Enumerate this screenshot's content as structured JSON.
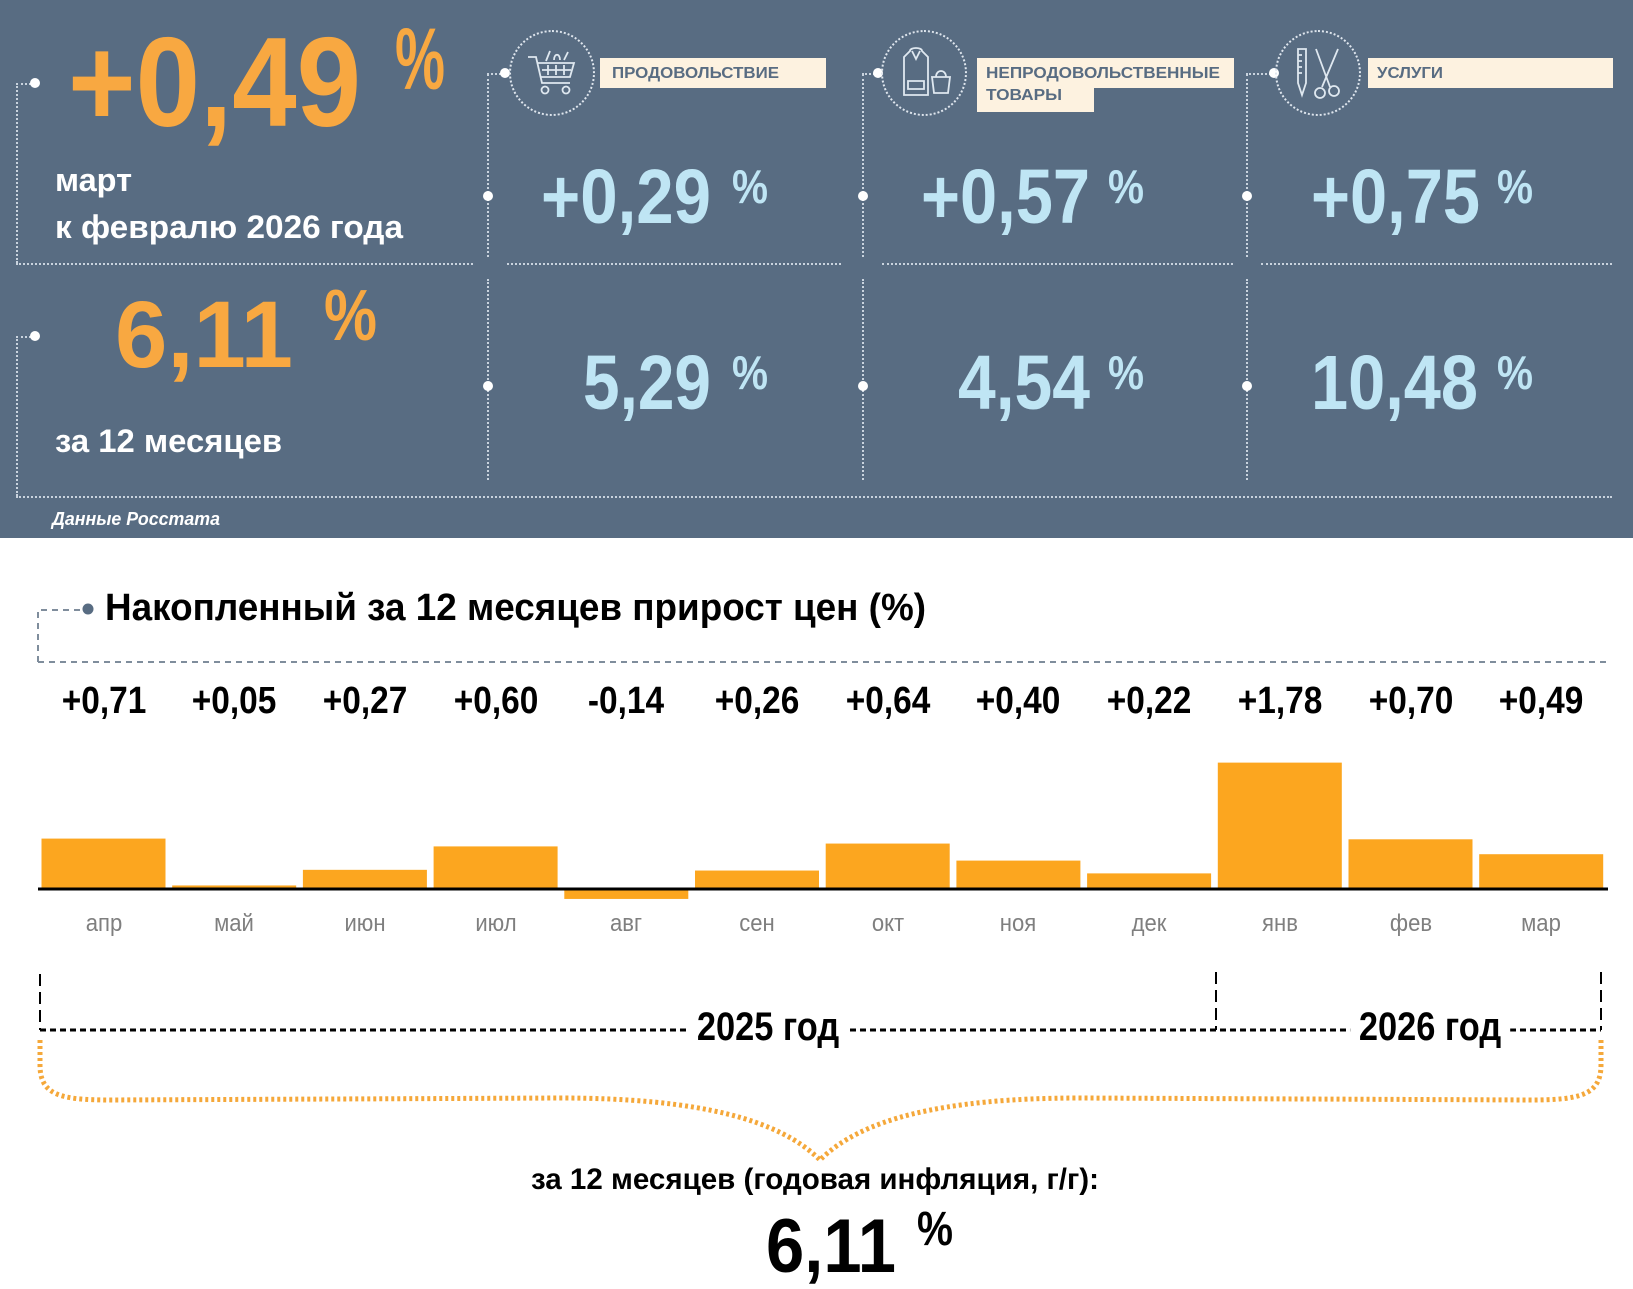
{
  "header": {
    "monthly": {
      "value": "+0,49",
      "unit": "%",
      "line1": "март",
      "line2": "к февралю 2026 года"
    },
    "annual": {
      "value": "6,11",
      "unit": "%",
      "label": "за 12 месяцев"
    },
    "source": "Данные Росстата",
    "categories": [
      {
        "icon": "shopping-cart-icon",
        "label_lines": [
          "ПРОДОВОЛЬСТВИЕ"
        ],
        "monthly": "+0,29",
        "annual": "5,29",
        "unit": "%"
      },
      {
        "icon": "clothing-bag-icon",
        "label_lines": [
          "НЕПРОДОВОЛЬСТВЕННЫЕ",
          "ТОВАРЫ"
        ],
        "monthly": "+0,57",
        "annual": "4,54",
        "unit": "%"
      },
      {
        "icon": "comb-scissors-icon",
        "label_lines": [
          "УСЛУГИ"
        ],
        "monthly": "+0,75",
        "annual": "10,48",
        "unit": "%"
      }
    ],
    "colors": {
      "panel": "#586c82",
      "accent": "#f8a841",
      "value": "#bfe5f4",
      "label_bg": "#fdf2e0"
    }
  },
  "chart_data": {
    "type": "bar",
    "title": "Накопленный за 12 месяцев прирост цен (%)",
    "categories": [
      "апр",
      "май",
      "июн",
      "июл",
      "авг",
      "сен",
      "окт",
      "ноя",
      "дек",
      "янв",
      "фев",
      "мар"
    ],
    "values": [
      0.71,
      0.05,
      0.27,
      0.6,
      -0.14,
      0.26,
      0.64,
      0.4,
      0.22,
      1.78,
      0.7,
      0.49
    ],
    "value_labels": [
      "+0,71",
      "+0,05",
      "+0,27",
      "+0,60",
      "-0,14",
      "+0,26",
      "+0,64",
      "+0,40",
      "+0,22",
      "+1,78",
      "+0,70",
      "+0,49"
    ],
    "bar_color": "#fca61f",
    "xlabel": "",
    "ylabel": "",
    "grid": false,
    "year_groups": [
      {
        "label": "2025 год",
        "months": 9
      },
      {
        "label": "2026 год",
        "months": 3
      }
    ],
    "summary_label": "за 12 месяцев (годовая инфляция, г/г):",
    "summary_value": "6,11",
    "summary_unit": "%"
  }
}
